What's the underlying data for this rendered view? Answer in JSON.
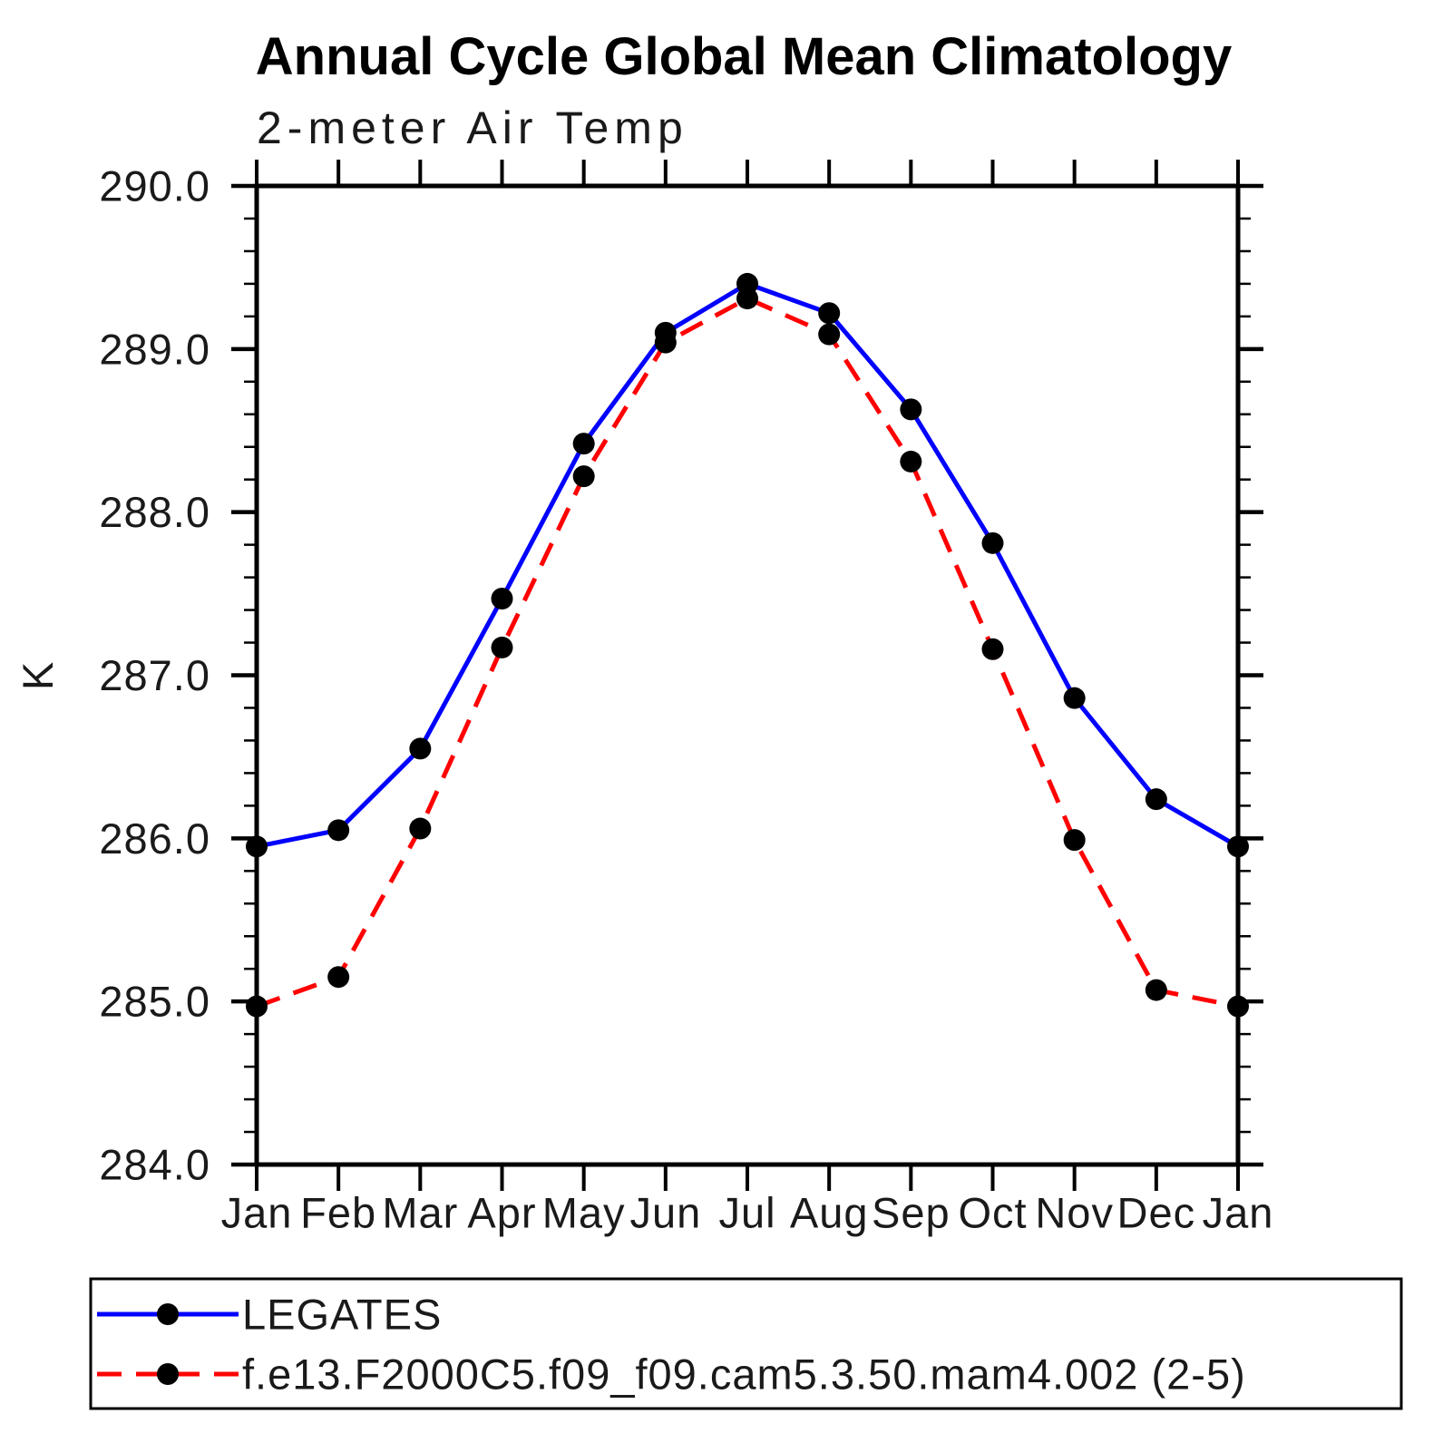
{
  "title": "Annual Cycle Global Mean Climatology",
  "subtitle": "2-meter Air Temp",
  "ylabel": "K",
  "colors": {
    "legates_line": "#0000ff",
    "model_line": "#ff0000",
    "marker": "#000000",
    "axis": "#000000",
    "background": "#ffffff"
  },
  "chart_data": {
    "type": "line",
    "title": "Annual Cycle Global Mean Climatology",
    "subtitle": "2-meter Air Temp",
    "xlabel": "",
    "ylabel": "K",
    "categories": [
      "Jan",
      "Feb",
      "Mar",
      "Apr",
      "May",
      "Jun",
      "Jul",
      "Aug",
      "Sep",
      "Oct",
      "Nov",
      "Dec",
      "Jan"
    ],
    "ylim": [
      284.0,
      290.0
    ],
    "ytick_interval": 1.0,
    "yminor_interval": 0.2,
    "ytick_labels": [
      "284.0",
      "285.0",
      "286.0",
      "287.0",
      "288.0",
      "289.0",
      "290.0"
    ],
    "grid": false,
    "legend_position": "bottom",
    "series": [
      {
        "key": "legates",
        "name": "LEGATES",
        "color": "#0000ff",
        "style": "solid",
        "marker": "circle",
        "marker_color": "#000000",
        "values": [
          285.95,
          286.05,
          286.55,
          287.47,
          288.42,
          289.1,
          289.4,
          289.22,
          288.63,
          287.81,
          286.86,
          286.24,
          285.95
        ]
      },
      {
        "key": "model",
        "name": "f.e13.F2000C5.f09_f09.cam5.3.50.mam4.002 (2-5)",
        "color": "#ff0000",
        "style": "dashed",
        "marker": "circle",
        "marker_color": "#000000",
        "values": [
          284.97,
          285.15,
          286.06,
          287.17,
          288.22,
          289.04,
          289.31,
          289.09,
          288.31,
          287.16,
          285.99,
          285.07,
          284.97
        ]
      }
    ]
  }
}
